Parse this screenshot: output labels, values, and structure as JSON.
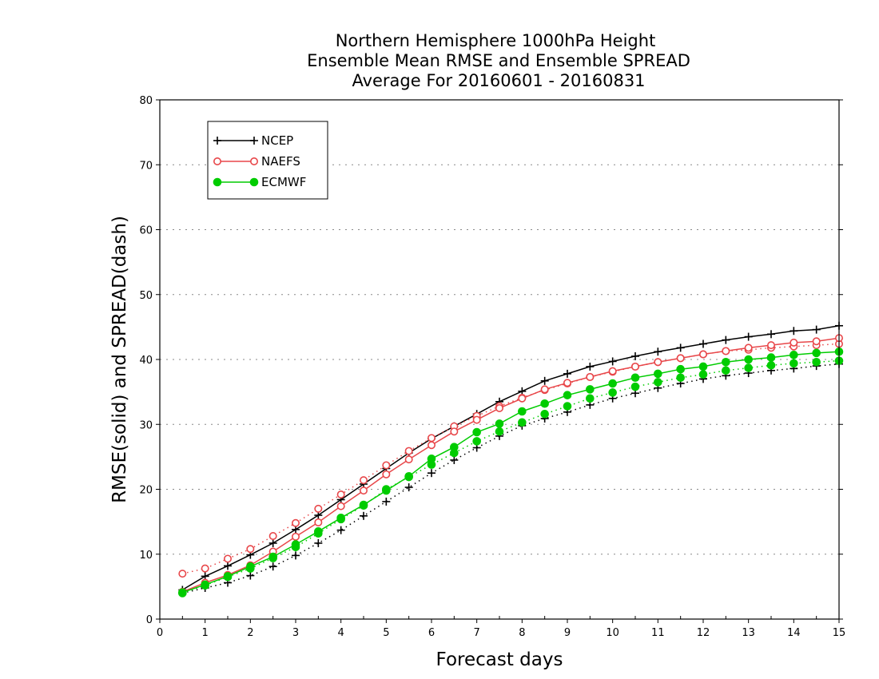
{
  "chart_data": {
    "type": "line",
    "title": [
      "Northern Hemisphere 1000hPa Height",
      "Ensemble Mean RMSE and Ensemble SPREAD",
      "Average For 20160601 - 20160831"
    ],
    "xlabel": "Forecast days",
    "ylabel": "RMSE(solid) and SPREAD(dash)",
    "xlim": [
      0,
      15
    ],
    "ylim": [
      0,
      80
    ],
    "xticks": [
      0,
      1,
      2,
      3,
      4,
      5,
      6,
      7,
      8,
      9,
      10,
      11,
      12,
      13,
      14,
      15
    ],
    "yticks": [
      0,
      10,
      20,
      30,
      40,
      50,
      60,
      70,
      80
    ],
    "grid": "horizontal dotted",
    "legend_position": "top-left",
    "x": [
      0.5,
      1,
      1.5,
      2,
      2.5,
      3,
      3.5,
      4,
      4.5,
      5,
      5.5,
      6,
      6.5,
      7,
      7.5,
      8,
      8.5,
      9,
      9.5,
      10,
      10.5,
      11,
      11.5,
      12,
      12.5,
      13,
      13.5,
      14,
      14.5,
      15
    ],
    "series": [
      {
        "name": "NCEP",
        "color": "#000000",
        "marker": "plus",
        "rmse": [
          4.5,
          6.6,
          8.2,
          9.9,
          11.7,
          13.8,
          16.0,
          18.4,
          20.8,
          23.2,
          25.6,
          27.8,
          29.7,
          31.6,
          33.5,
          35.1,
          36.7,
          37.8,
          38.9,
          39.7,
          40.5,
          41.2,
          41.8,
          42.4,
          43.0,
          43.5,
          43.9,
          44.4,
          44.6,
          45.2
        ],
        "spread": [
          4.0,
          4.8,
          5.6,
          6.7,
          8.1,
          9.8,
          11.7,
          13.7,
          15.9,
          18.1,
          20.3,
          22.5,
          24.5,
          26.4,
          28.2,
          29.8,
          30.9,
          31.9,
          33.0,
          34.0,
          34.8,
          35.6,
          36.3,
          37.0,
          37.5,
          37.9,
          38.3,
          38.6,
          39.0,
          39.3
        ]
      },
      {
        "name": "NAEFS",
        "color": "#e8474a",
        "marker": "open-circle",
        "rmse": [
          4.2,
          5.6,
          6.8,
          8.3,
          10.4,
          12.7,
          14.9,
          17.4,
          19.8,
          22.3,
          24.6,
          26.8,
          28.9,
          30.7,
          32.5,
          34.0,
          35.4,
          36.4,
          37.3,
          38.2,
          38.9,
          39.6,
          40.2,
          40.8,
          41.3,
          41.8,
          42.2,
          42.6,
          42.8,
          43.3
        ],
        "spread": [
          7.0,
          7.8,
          9.3,
          10.8,
          12.8,
          14.8,
          17.0,
          19.2,
          21.4,
          23.7,
          25.9,
          27.9,
          29.7,
          31.3,
          32.8,
          34.1,
          35.3,
          36.3,
          37.3,
          38.1,
          38.9,
          39.6,
          40.2,
          40.8,
          41.3,
          41.5,
          41.8,
          42.0,
          42.2,
          42.4
        ]
      },
      {
        "name": "ECMWF",
        "color": "#00cc00",
        "marker": "filled-circle",
        "rmse": [
          4.1,
          5.3,
          6.6,
          8.1,
          9.6,
          11.5,
          13.5,
          15.6,
          17.6,
          19.8,
          22.0,
          24.7,
          26.5,
          28.8,
          30.1,
          32.0,
          33.2,
          34.5,
          35.4,
          36.3,
          37.2,
          37.8,
          38.5,
          38.9,
          39.6,
          40.0,
          40.3,
          40.7,
          41.0,
          41.2
        ],
        "spread": [
          4.0,
          5.2,
          6.5,
          7.8,
          9.4,
          11.1,
          13.2,
          15.4,
          17.5,
          20.0,
          21.9,
          23.8,
          25.6,
          27.4,
          28.9,
          30.3,
          31.6,
          32.8,
          34.0,
          34.9,
          35.8,
          36.5,
          37.2,
          37.7,
          38.3,
          38.7,
          39.1,
          39.4,
          39.6,
          39.8
        ]
      }
    ]
  }
}
